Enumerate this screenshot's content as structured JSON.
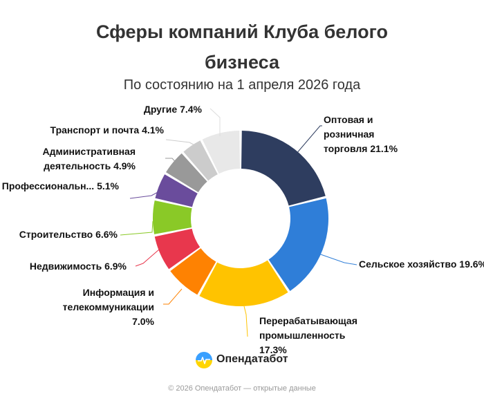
{
  "header": {
    "title_line1": "Сферы компаний Клуба белого",
    "title_line2": "бизнеса",
    "subtitle": "По состоянию на 1 апреля 2026 года"
  },
  "chart_data": {
    "type": "pie",
    "donut": true,
    "title": "Сферы компаний Клуба белого бизнеса",
    "subtitle": "По состоянию на 1 апреля 2026 года",
    "slices": [
      {
        "label": "Оптовая и розничная торговля",
        "value": 21.1,
        "color": "#2e3d5f",
        "text_lines": [
          "Оптовая и",
          "розничная",
          "торговля 21.1%"
        ]
      },
      {
        "label": "Сельское хозяйство",
        "value": 19.6,
        "color": "#2f7ed8",
        "text_lines": [
          "Сельское хозяйство 19.6%"
        ]
      },
      {
        "label": "Перерабатывающая промышленность",
        "value": 17.3,
        "color": "#ffc300",
        "text_lines": [
          "Перерабатывающая",
          "промышленность",
          "17.3%"
        ]
      },
      {
        "label": "Информация и телекоммуникации",
        "value": 7.0,
        "color": "#fe8202",
        "text_lines": [
          "Информация и",
          "телекоммуникации",
          "7.0%"
        ]
      },
      {
        "label": "Недвижимость",
        "value": 6.9,
        "color": "#e8374d",
        "text_lines": [
          "Недвижимость 6.9%"
        ]
      },
      {
        "label": "Строительство",
        "value": 6.6,
        "color": "#8ac927",
        "text_lines": [
          "Строительство 6.6%"
        ]
      },
      {
        "label": "Профессиональная",
        "value": 5.1,
        "color": "#6a4c9c",
        "text_lines": [
          "Профессиональн... 5.1%"
        ]
      },
      {
        "label": "Административная деятельность",
        "value": 4.9,
        "color": "#999999",
        "text_lines": [
          "Административная",
          "деятельность 4.9%"
        ]
      },
      {
        "label": "Транспорт и почта",
        "value": 4.1,
        "color": "#cccccc",
        "text_lines": [
          "Транспорт и почта 4.1%"
        ]
      },
      {
        "label": "Другие",
        "value": 7.4,
        "color": "#e8e8e8",
        "text_lines": [
          "Другие 7.4%"
        ]
      }
    ]
  },
  "logo": {
    "text": "Опендатабот",
    "icon": "opendatabot-logo-icon"
  },
  "footer": {
    "text": "© 2026 Опендатабот — открытые данные"
  }
}
